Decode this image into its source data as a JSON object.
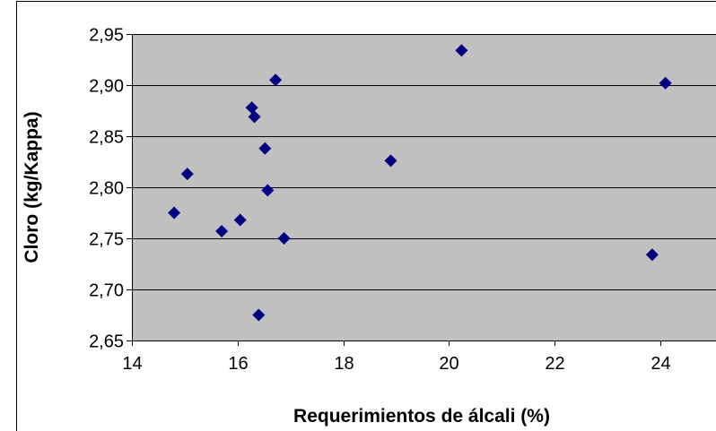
{
  "chart_data": {
    "type": "scatter",
    "title": "",
    "xlabel": "Requerimientos de álcali (%)",
    "ylabel": "Cloro (kg/Kappa)",
    "xlim": [
      14,
      25
    ],
    "ylim": [
      2.65,
      2.95
    ],
    "x_ticks": [
      "14",
      "16",
      "18",
      "20",
      "22",
      "24"
    ],
    "y_ticks": [
      "2,65",
      "2,70",
      "2,75",
      "2,80",
      "2,85",
      "2,90",
      "2,95"
    ],
    "grid": "horizontal",
    "legend": "none",
    "colors": {
      "plot_background": "#c0c0c0",
      "marker": "#000080",
      "gridline": "#000000",
      "frame": "#000000"
    },
    "marker_shape": "diamond",
    "series": [
      {
        "points": [
          {
            "x": 14.8,
            "y": 2.775
          },
          {
            "x": 15.05,
            "y": 2.813
          },
          {
            "x": 15.7,
            "y": 2.757
          },
          {
            "x": 16.05,
            "y": 2.768
          },
          {
            "x": 16.27,
            "y": 2.878
          },
          {
            "x": 16.32,
            "y": 2.869
          },
          {
            "x": 16.4,
            "y": 2.675
          },
          {
            "x": 16.52,
            "y": 2.838
          },
          {
            "x": 16.57,
            "y": 2.797
          },
          {
            "x": 16.72,
            "y": 2.905
          },
          {
            "x": 16.88,
            "y": 2.75
          },
          {
            "x": 18.9,
            "y": 2.826
          },
          {
            "x": 20.24,
            "y": 2.934
          },
          {
            "x": 23.85,
            "y": 2.734
          },
          {
            "x": 24.1,
            "y": 2.902
          }
        ]
      }
    ]
  }
}
